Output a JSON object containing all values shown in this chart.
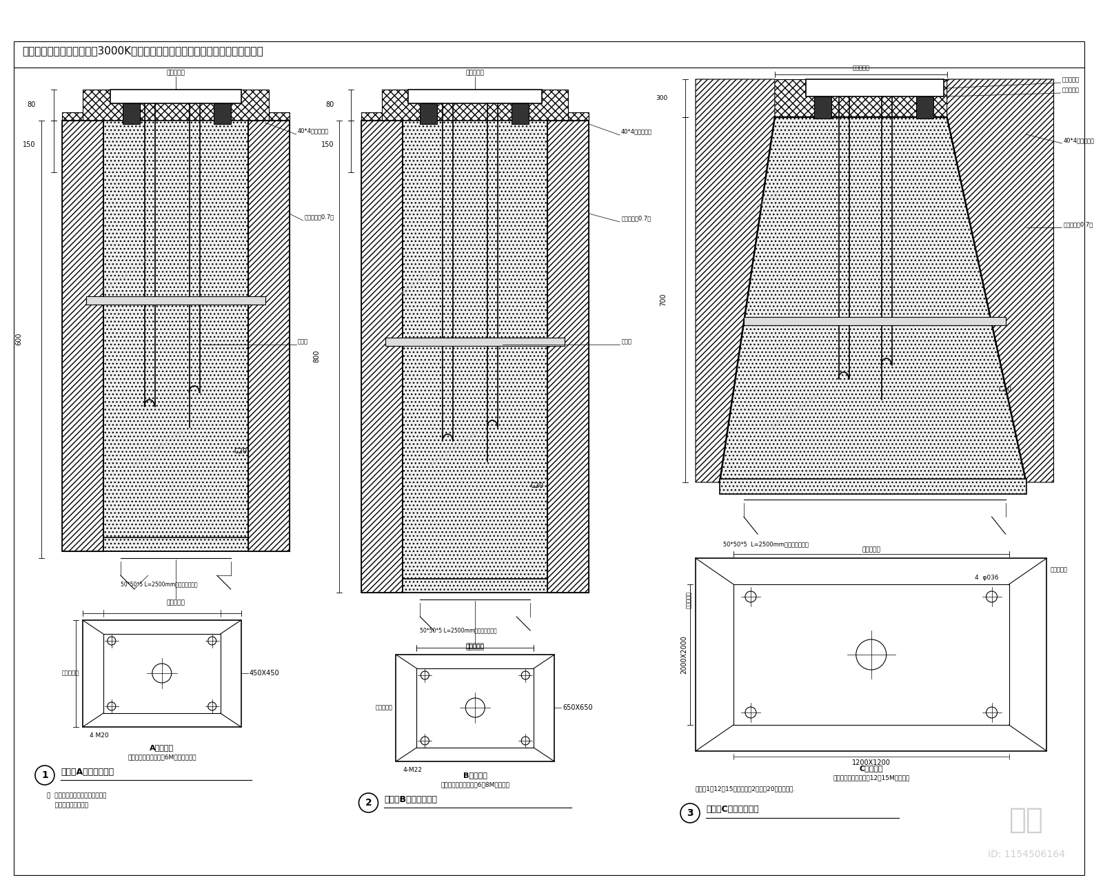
{
  "bg_color": "#ffffff",
  "lc": "#000000",
  "title_note": "注：灯具光源必须使用接近3000K的暖白光、暖黄光，避免其他五颜六色的光源。",
  "note1_title": "A型基础图",
  "note1_sub": "（该基础图适合高度为6M以下的灯具）",
  "note2_title": "B型基础图",
  "note2_sub": "（该基础图适合高度为6－8M的灯具）",
  "note3_title": "C型基础图",
  "note3_sub": "（该基础图适合高度为12－15M的灯具）",
  "note3_extra": "说明：1、12－15米高灯用。2、负载20吨每平方米.",
  "label1": "高杆灯A型基础安装图",
  "label2": "高杆灯B型基础安装图",
  "label3": "高杆灯C型基础安装图",
  "footer_note1": "注  灯柱螺母、螺杆必须涂防锈漆。",
  "footer_note2": "    螺杆须加护套数士。"
}
